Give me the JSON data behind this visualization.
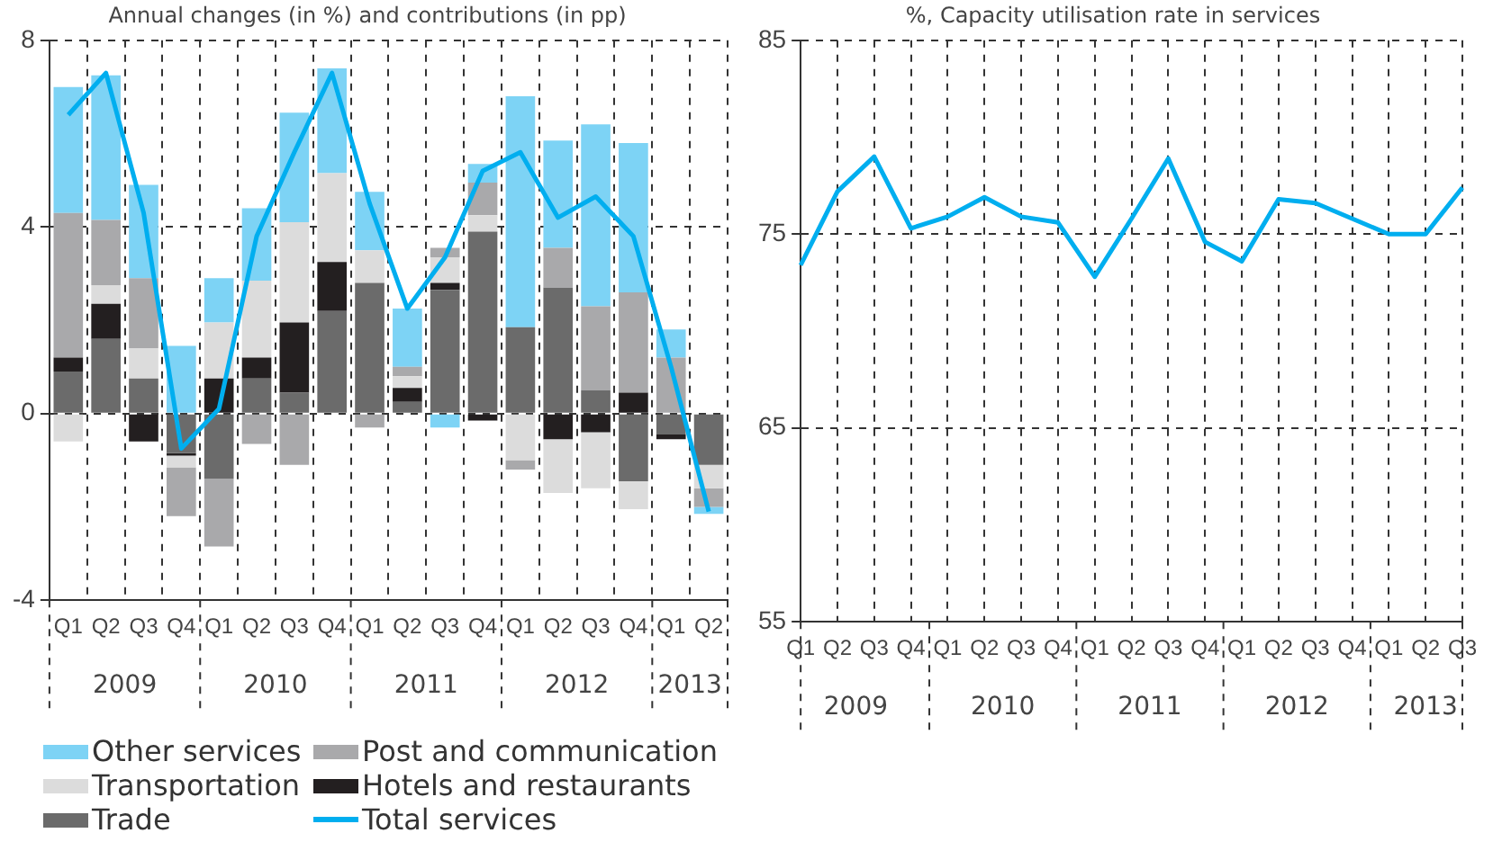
{
  "chart_data": [
    {
      "type": "bar",
      "stacked": true,
      "title": "Annual changes (in %) and contributions (in pp)",
      "categories": [
        "Q1",
        "Q2",
        "Q3",
        "Q4",
        "Q1",
        "Q2",
        "Q3",
        "Q4",
        "Q1",
        "Q2",
        "Q3",
        "Q4",
        "Q1",
        "Q2",
        "Q3",
        "Q4",
        "Q1",
        "Q2"
      ],
      "annotations": [
        "2009",
        "2010",
        "2011",
        "2012",
        "2013"
      ],
      "series": [
        {
          "name": "Trade",
          "color": "#6b6b6b",
          "values": [
            0.9,
            1.6,
            0.75,
            -0.85,
            -1.4,
            0.75,
            0.45,
            2.2,
            2.8,
            0.25,
            2.65,
            3.9,
            1.85,
            2.7,
            0.5,
            -1.45,
            -0.45,
            -1.1
          ]
        },
        {
          "name": "Hotels and restaurants",
          "color": "#231f20",
          "values": [
            0.3,
            0.75,
            -0.6,
            -0.05,
            0.75,
            0.45,
            1.5,
            1.05,
            0,
            0.3,
            0.15,
            -0.15,
            0,
            -0.55,
            -0.4,
            0.45,
            -0.1,
            0
          ]
        },
        {
          "name": "Transportation",
          "color": "#dcdcdc",
          "values": [
            -0.6,
            0.4,
            0.65,
            -0.25,
            1.2,
            1.65,
            2.15,
            1.9,
            0.7,
            0.25,
            0.55,
            0.35,
            -1,
            -1.15,
            -1.2,
            -0.6,
            0,
            -0.5
          ]
        },
        {
          "name": "Post and communication",
          "color": "#a9a9ab",
          "values": [
            3.1,
            1.4,
            1.5,
            -1.05,
            -1.45,
            -0.65,
            -1.1,
            0,
            -0.3,
            0.2,
            0.2,
            0.7,
            -0.2,
            0.85,
            1.8,
            2.15,
            1.2,
            -0.4
          ]
        },
        {
          "name": "Other services",
          "color": "#7dd3f5",
          "values": [
            2.7,
            3.1,
            2,
            1.45,
            0.95,
            1.55,
            2.35,
            2.25,
            1.25,
            1.25,
            -0.3,
            0.4,
            4.95,
            2.3,
            3.9,
            3.2,
            0.6,
            -0.15
          ]
        },
        {
          "name": "Total services",
          "type": "line",
          "color": "#00aeef",
          "values": [
            6.4,
            7.3,
            4.3,
            -0.75,
            0.1,
            3.8,
            5.6,
            7.3,
            4.5,
            2.25,
            3.35,
            5.2,
            5.6,
            4.2,
            4.65,
            3.8,
            1.0,
            -2.1
          ]
        }
      ],
      "ylim": [
        -4,
        8
      ],
      "yticks": [
        -4,
        0,
        4,
        8
      ],
      "grid": true,
      "legend": "bottom",
      "marker": "none",
      "line_style": "solid"
    },
    {
      "type": "line",
      "title": "%, Capacity utilisation rate in services",
      "categories": [
        "Q1",
        "Q2",
        "Q3",
        "Q4",
        "Q1",
        "Q2",
        "Q3",
        "Q4",
        "Q1",
        "Q2",
        "Q3",
        "Q4",
        "Q1",
        "Q2",
        "Q3",
        "Q4",
        "Q1",
        "Q2",
        "Q3"
      ],
      "annotations": [
        "2009",
        "2010",
        "2011",
        "2012",
        "2013"
      ],
      "series": [
        {
          "color": "#00aeef",
          "values": [
            73.4,
            77.2,
            79.0,
            75.3,
            75.9,
            76.9,
            75.9,
            75.6,
            72.8,
            75.8,
            78.9,
            74.6,
            73.6,
            76.8,
            76.6,
            75.8,
            75.0,
            75.0,
            77.4
          ]
        }
      ],
      "ylim": [
        55,
        85
      ],
      "yticks": [
        55,
        65,
        75,
        85
      ],
      "grid": true,
      "marker": "none",
      "line_style": "solid"
    }
  ]
}
